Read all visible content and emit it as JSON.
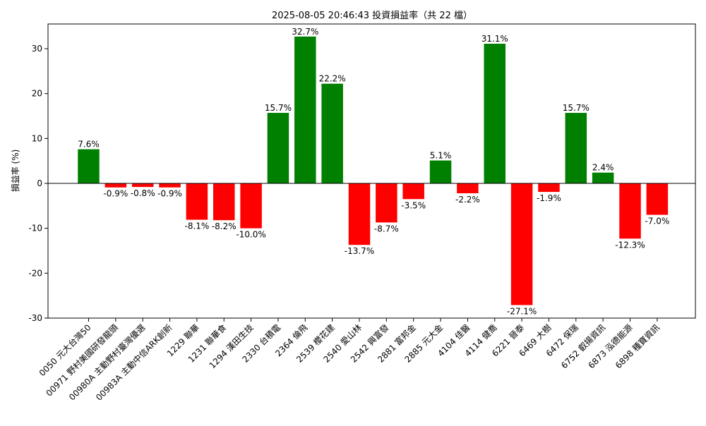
{
  "chart_data": {
    "type": "bar",
    "title": "2025-08-05 20:46:43 投資損益率（共 22 檔）",
    "xlabel": "",
    "ylabel": "損益率 (%)",
    "ylim": [
      -30,
      35.5
    ],
    "yticks": [
      -30,
      -20,
      -10,
      0,
      10,
      20,
      30
    ],
    "grid": false,
    "categories": [
      "0050 元大台灣50",
      "00971 野村美國研發龍頭",
      "00980A 主動野村臺灣優選",
      "00983A 主動中信ARK創新",
      "1229 聯華",
      "1231 聯華食",
      "1294 漢田生技",
      "2330 台積電",
      "2364 倫飛",
      "2539 櫻花建",
      "2540 愛山林",
      "2542 興富發",
      "2881 富邦金",
      "2885 元大金",
      "4104 佳醫",
      "4114 健喬",
      "6221 晉泰",
      "6469 大樹",
      "6472 保瑞",
      "6752 叡揚資訊",
      "6873 泓德能源",
      "6898 種寶資訊"
    ],
    "values": [
      7.6,
      -0.9,
      -0.8,
      -0.9,
      -8.1,
      -8.2,
      -10.0,
      15.7,
      32.7,
      22.2,
      -13.7,
      -8.7,
      -3.5,
      5.1,
      -2.2,
      31.1,
      -27.1,
      -1.9,
      15.7,
      2.4,
      -12.3,
      -7.0
    ],
    "value_labels": [
      "7.6%",
      "-0.9%",
      "-0.8%",
      "-0.9%",
      "-8.1%",
      "-8.2%",
      "-10.0%",
      "15.7%",
      "32.7%",
      "22.2%",
      "-13.7%",
      "-8.7%",
      "-3.5%",
      "5.1%",
      "-2.2%",
      "31.1%",
      "-27.1%",
      "-1.9%",
      "15.7%",
      "2.4%",
      "-12.3%",
      "-7.0%"
    ],
    "colors": {
      "positive": "#008000",
      "negative": "#ff0000",
      "zero_line": "#000000"
    }
  }
}
